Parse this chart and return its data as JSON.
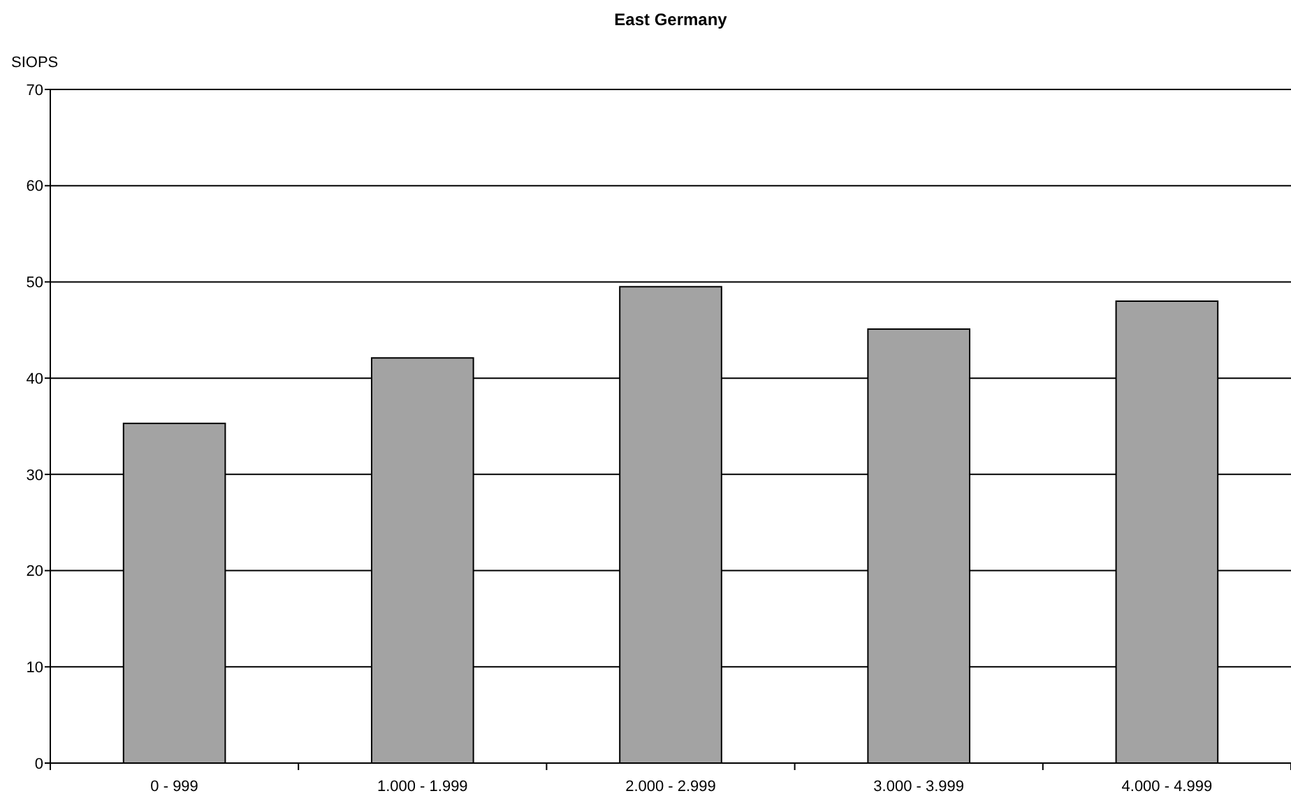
{
  "chart_data": {
    "type": "bar",
    "title": "East Germany",
    "ylabel": "SIOPS",
    "categories": [
      "0 - 999",
      "1.000 - 1.999",
      "2.000 - 2.999",
      "3.000 - 3.999",
      "4.000 - 4.999"
    ],
    "values": [
      35.3,
      42.1,
      49.5,
      45.1,
      48.0
    ],
    "color": "#a3a3a3",
    "ylim": [
      0,
      70
    ],
    "yticks": [
      0,
      10,
      20,
      30,
      40,
      50,
      60,
      70
    ],
    "grid": "y"
  }
}
